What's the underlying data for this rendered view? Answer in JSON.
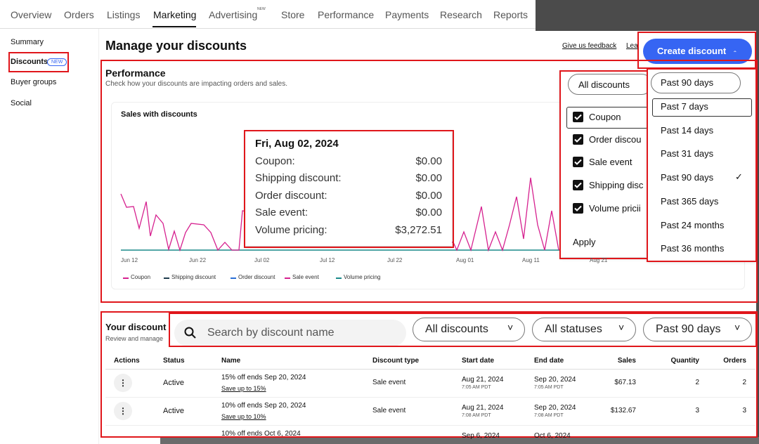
{
  "nav": {
    "tabs": [
      "Overview",
      "Orders",
      "Listings",
      "Marketing",
      "Advertising",
      "Store",
      "Performance",
      "Payments",
      "Research",
      "Reports"
    ],
    "active": "Marketing",
    "new_badge": "NEW"
  },
  "sidebar": {
    "items": [
      "Summary",
      "Discounts",
      "Buyer groups",
      "Social"
    ],
    "new_badge": "NEW"
  },
  "header": {
    "title": "Manage your discounts",
    "feedback": "Give us feedback",
    "learn": "Lea",
    "create_button": "Create discount"
  },
  "performance": {
    "title": "Performance",
    "subtitle": "Check how your discounts are impacting orders and sales.",
    "chart_title": "Sales with discounts",
    "x_labels": [
      "Jun 12",
      "Jun 22",
      "Jul 02",
      "Jul 12",
      "Jul 22",
      "Aug 01",
      "Aug 11",
      "Aug 21"
    ],
    "legend": [
      {
        "name": "Coupon",
        "color": "#d6218f"
      },
      {
        "name": "Shipping discount",
        "color": "#1f3b4d"
      },
      {
        "name": "Order discount",
        "color": "#2a6fd6"
      },
      {
        "name": "Sale event",
        "color": "#d6218f"
      },
      {
        "name": "Volume pricing",
        "color": "#1a8a8a"
      }
    ],
    "tooltip": {
      "date": "Fri, Aug 02, 2024",
      "rows": [
        {
          "label": "Coupon:",
          "value": "$0.00"
        },
        {
          "label": "Shipping discount:",
          "value": "$0.00"
        },
        {
          "label": "Order discount:",
          "value": "$0.00"
        },
        {
          "label": "Sale event:",
          "value": "$0.00"
        },
        {
          "label": "Volume pricing:",
          "value": "$3,272.51"
        }
      ]
    }
  },
  "type_filter": {
    "button": "All discounts",
    "options": [
      "Coupon",
      "Order discou",
      "Sale event",
      "Shipping disc",
      "Volume pricii"
    ],
    "apply": "Apply"
  },
  "period_filter": {
    "button": "Past 90 days",
    "options": [
      "Past 7 days",
      "Past 14 days",
      "Past 31 days",
      "Past 90 days",
      "Past 365 days",
      "Past 24 months",
      "Past 36 months"
    ],
    "selected": 3
  },
  "discounts": {
    "title": "Your discount",
    "subtitle": "Review and manage",
    "search_placeholder": "Search by discount name",
    "filters": [
      "All discounts",
      "All statuses",
      "Past 90 days"
    ],
    "table": {
      "headers": [
        "Actions",
        "Status",
        "Name",
        "Discount type",
        "Start date",
        "End date",
        "Sales",
        "Quantity",
        "Orders"
      ],
      "rows": [
        {
          "status": "Active",
          "name": "15% off ends Sep 20, 2024",
          "detail": "Save up to 15%",
          "type": "Sale event",
          "start": "Aug 21, 2024",
          "start_time": "7:05 AM PDT",
          "end": "Sep 20, 2024",
          "end_time": "7:05 AM PDT",
          "sales": "$67.13",
          "quantity": "2",
          "orders": "2"
        },
        {
          "status": "Active",
          "name": "10% off ends Sep 20, 2024",
          "detail": "Save up to 10%",
          "type": "Sale event",
          "start": "Aug 21, 2024",
          "start_time": "7:08 AM PDT",
          "end": "Sep 20, 2024",
          "end_time": "7:08 AM PDT",
          "sales": "$132.67",
          "quantity": "3",
          "orders": "3"
        },
        {
          "name": "10% off ends Oct 6, 2024",
          "start": "Sep 6, 2024",
          "end": "Oct 6, 2024"
        }
      ]
    }
  }
}
